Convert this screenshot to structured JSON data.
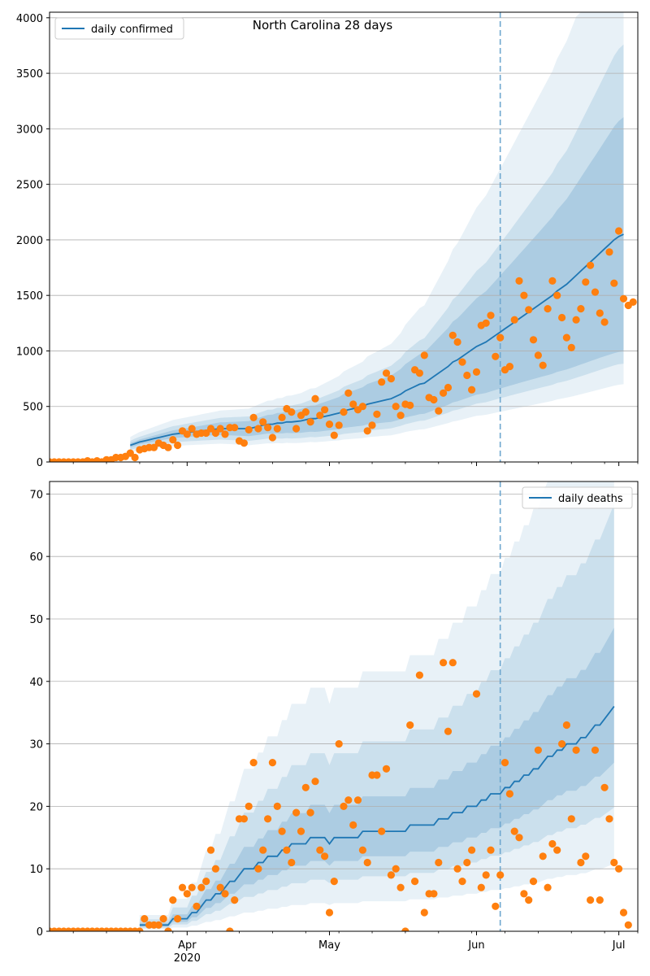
{
  "figure": {
    "title": "North Carolina 28 days"
  },
  "chart_data": [
    {
      "type": "line",
      "name": "confirmed",
      "title": "North Carolina 28 days",
      "xlabel": "",
      "ylabel": "",
      "x_start": "2020-03-03",
      "ylim": [
        0,
        4050
      ],
      "yticks": [
        0,
        500,
        1000,
        1500,
        2000,
        2500,
        3000,
        3500,
        4000
      ],
      "xticks": [
        {
          "date": "2020-04-01",
          "label": "Apr",
          "sublabel": "2020"
        },
        {
          "date": "2020-05-01",
          "label": "May",
          "sublabel": ""
        },
        {
          "date": "2020-06-01",
          "label": "Jun",
          "sublabel": ""
        },
        {
          "date": "2020-07-01",
          "label": "Jul",
          "sublabel": ""
        }
      ],
      "vline_date": "2020-06-06",
      "grid": "horizontal",
      "legend": {
        "label": "daily confirmed",
        "position": "top-left"
      },
      "colors": {
        "line": "#1f77b4",
        "points": "#ff7f0e",
        "band": "#1f77b4"
      },
      "observed": [
        0,
        0,
        0,
        0,
        0,
        0,
        0,
        0,
        10,
        0,
        10,
        0,
        20,
        20,
        40,
        40,
        50,
        80,
        40,
        110,
        120,
        130,
        130,
        170,
        150,
        130,
        200,
        150,
        280,
        250,
        300,
        250,
        260,
        260,
        300,
        260,
        300,
        250,
        310,
        310,
        190,
        170,
        290,
        400,
        300,
        360,
        310,
        220,
        300,
        400,
        480,
        450,
        300,
        420,
        450,
        360,
        570,
        420,
        470,
        340,
        240,
        330,
        450,
        620,
        520,
        470,
        500,
        280,
        330,
        430,
        720,
        800,
        750,
        500,
        420,
        520,
        510,
        830,
        800,
        960,
        580,
        560,
        460,
        620,
        670,
        1140,
        1080,
        900,
        780,
        650,
        810,
        1230,
        1250,
        1320,
        950,
        1120,
        830,
        860,
        1280,
        1630,
        1500,
        1370,
        1100,
        960,
        870,
        1380,
        1630,
        1500,
        1300,
        1120,
        1030,
        1280,
        1380,
        1620,
        1770,
        1530,
        1340,
        1260,
        1890,
        1610,
        2080,
        1470,
        1410,
        1440
      ],
      "model_x_start": "2020-03-20",
      "model": [
        150,
        165,
        180,
        190,
        200,
        210,
        220,
        230,
        240,
        250,
        255,
        260,
        265,
        270,
        275,
        280,
        285,
        290,
        295,
        300,
        300,
        300,
        300,
        300,
        300,
        300,
        310,
        320,
        330,
        340,
        340,
        350,
        350,
        360,
        360,
        365,
        370,
        380,
        390,
        390,
        400,
        410,
        420,
        430,
        440,
        460,
        470,
        480,
        490,
        500,
        520,
        530,
        540,
        550,
        560,
        570,
        590,
        610,
        640,
        660,
        680,
        700,
        710,
        740,
        770,
        800,
        830,
        860,
        900,
        920,
        950,
        980,
        1010,
        1040,
        1060,
        1080,
        1110,
        1140,
        1170,
        1200,
        1230,
        1260,
        1290,
        1320,
        1350,
        1380,
        1410,
        1440,
        1470,
        1500,
        1540,
        1570,
        1600,
        1640,
        1680,
        1720,
        1760,
        1800,
        1840,
        1880,
        1920,
        1960,
        2000,
        2030,
        2050
      ],
      "bands": {
        "inner": {
          "lo": [
            130,
            145,
            158,
            166,
            175,
            183,
            191,
            199,
            207,
            215,
            219,
            222,
            225,
            228,
            231,
            233,
            236,
            239,
            241,
            243,
            242,
            240,
            238,
            236,
            234,
            232,
            238,
            244,
            250,
            256,
            254,
            259,
            257,
            262,
            260,
            261,
            263,
            268,
            273,
            271,
            275,
            280,
            285,
            290,
            295,
            307,
            312,
            317,
            322,
            327,
            338,
            343,
            348,
            352,
            357,
            361,
            372,
            384,
            400,
            410,
            420,
            430,
            434,
            450,
            466,
            482,
            498,
            514,
            536,
            546,
            561,
            576,
            591,
            606,
            614,
            622,
            635,
            648,
            661,
            674,
            687,
            699,
            711,
            723,
            735,
            747,
            759,
            771,
            782,
            794,
            811,
            822,
            833,
            848,
            863,
            878,
            893,
            908,
            923,
            938,
            952,
            966,
            980,
            990,
            995
          ],
          "hi": [
            170,
            185,
            202,
            214,
            225,
            237,
            249,
            261,
            273,
            285,
            291,
            298,
            305,
            312,
            319,
            327,
            334,
            341,
            349,
            357,
            358,
            360,
            362,
            364,
            366,
            368,
            382,
            396,
            410,
            424,
            426,
            441,
            443,
            458,
            460,
            469,
            477,
            492,
            507,
            509,
            525,
            540,
            555,
            570,
            585,
            613,
            628,
            643,
            658,
            673,
            702,
            717,
            732,
            748,
            763,
            779,
            808,
            836,
            880,
            910,
            940,
            970,
            986,
            1030,
            1074,
            1118,
            1162,
            1206,
            1264,
            1294,
            1339,
            1384,
            1429,
            1474,
            1506,
            1538,
            1585,
            1632,
            1679,
            1726,
            1773,
            1821,
            1869,
            1917,
            1965,
            2013,
            2061,
            2109,
            2158,
            2206,
            2269,
            2318,
            2367,
            2432,
            2497,
            2562,
            2627,
            2692,
            2757,
            2822,
            2888,
            2954,
            3020,
            3070,
            3105
          ]
        },
        "mid": {
          "lo": [
            110,
            121,
            132,
            139,
            145,
            152,
            158,
            165,
            171,
            178,
            181,
            183,
            186,
            188,
            190,
            193,
            195,
            197,
            200,
            202,
            200,
            198,
            196,
            194,
            192,
            190,
            195,
            200,
            205,
            210,
            208,
            212,
            210,
            214,
            212,
            213,
            215,
            220,
            225,
            223,
            227,
            231,
            235,
            239,
            243,
            253,
            257,
            262,
            266,
            270,
            280,
            285,
            290,
            294,
            299,
            303,
            314,
            325,
            340,
            350,
            360,
            370,
            373,
            387,
            401,
            415,
            429,
            443,
            462,
            470,
            484,
            498,
            511,
            525,
            532,
            538,
            550,
            562,
            574,
            585,
            597,
            608,
            619,
            630,
            641,
            652,
            663,
            674,
            684,
            695,
            711,
            721,
            731,
            744,
            758,
            772,
            786,
            800,
            814,
            828,
            842,
            856,
            870,
            880,
            885
          ],
          "hi": [
            190,
            210,
            227,
            241,
            255,
            268,
            281,
            295,
            309,
            322,
            329,
            337,
            345,
            352,
            360,
            367,
            375,
            383,
            390,
            398,
            400,
            402,
            404,
            406,
            408,
            410,
            425,
            440,
            455,
            470,
            472,
            488,
            490,
            506,
            508,
            517,
            526,
            542,
            558,
            560,
            577,
            594,
            611,
            628,
            645,
            677,
            694,
            711,
            728,
            745,
            780,
            797,
            814,
            832,
            849,
            867,
            902,
            937,
            990,
            1025,
            1060,
            1095,
            1114,
            1169,
            1224,
            1279,
            1334,
            1389,
            1463,
            1500,
            1555,
            1610,
            1665,
            1720,
            1758,
            1796,
            1853,
            1910,
            1967,
            2024,
            2081,
            2139,
            2197,
            2255,
            2313,
            2371,
            2429,
            2487,
            2546,
            2604,
            2685,
            2744,
            2803,
            2888,
            2973,
            3058,
            3143,
            3228,
            3313,
            3398,
            3484,
            3570,
            3656,
            3720,
            3760
          ]
        },
        "outer": {
          "lo": [
            90,
            99,
            108,
            113,
            118,
            123,
            128,
            133,
            138,
            144,
            146,
            149,
            151,
            153,
            155,
            157,
            159,
            161,
            163,
            165,
            163,
            161,
            158,
            156,
            153,
            150,
            155,
            160,
            164,
            168,
            166,
            170,
            168,
            172,
            170,
            170,
            172,
            176,
            180,
            178,
            181,
            184,
            188,
            191,
            194,
            202,
            205,
            209,
            212,
            215,
            223,
            227,
            230,
            234,
            237,
            240,
            249,
            258,
            270,
            278,
            285,
            292,
            295,
            306,
            317,
            328,
            339,
            350,
            365,
            372,
            383,
            394,
            405,
            415,
            420,
            425,
            434,
            443,
            452,
            461,
            470,
            479,
            488,
            497,
            506,
            515,
            524,
            533,
            541,
            550,
            563,
            571,
            579,
            589,
            599,
            610,
            621,
            632,
            643,
            654,
            665,
            676,
            687,
            695,
            700
          ],
          "hi": [
            225,
            248,
            270,
            285,
            300,
            316,
            331,
            347,
            362,
            378,
            386,
            395,
            403,
            412,
            420,
            429,
            437,
            446,
            454,
            463,
            466,
            469,
            472,
            475,
            478,
            480,
            498,
            516,
            534,
            552,
            555,
            574,
            577,
            596,
            599,
            610,
            621,
            641,
            661,
            664,
            686,
            708,
            730,
            752,
            774,
            815,
            837,
            859,
            881,
            903,
            950,
            972,
            994,
            1018,
            1041,
            1064,
            1112,
            1160,
            1235,
            1285,
            1335,
            1385,
            1410,
            1490,
            1570,
            1650,
            1730,
            1810,
            1915,
            1970,
            2050,
            2130,
            2210,
            2290,
            2345,
            2400,
            2480,
            2560,
            2640,
            2720,
            2800,
            2880,
            2960,
            3040,
            3120,
            3200,
            3280,
            3360,
            3440,
            3520,
            3630,
            3710,
            3790,
            3900,
            4010,
            4100,
            4200,
            4300,
            4400,
            4500,
            4600,
            4700,
            4800,
            4870,
            4920
          ]
        }
      }
    },
    {
      "type": "line",
      "name": "deaths",
      "title": "",
      "xlabel": "",
      "ylabel": "",
      "x_start": "2020-03-03",
      "ylim": [
        0,
        72
      ],
      "yticks": [
        0,
        10,
        20,
        30,
        40,
        50,
        60,
        70
      ],
      "xticks": [
        {
          "date": "2020-04-01",
          "label": "Apr",
          "sublabel": "2020"
        },
        {
          "date": "2020-05-01",
          "label": "May",
          "sublabel": ""
        },
        {
          "date": "2020-06-01",
          "label": "Jun",
          "sublabel": ""
        },
        {
          "date": "2020-07-01",
          "label": "Jul",
          "sublabel": ""
        }
      ],
      "vline_date": "2020-06-06",
      "grid": "horizontal",
      "legend": {
        "label": "daily deaths",
        "position": "top-right"
      },
      "colors": {
        "line": "#1f77b4",
        "points": "#ff7f0e",
        "band": "#1f77b4"
      },
      "observed": [
        0,
        0,
        0,
        0,
        0,
        0,
        0,
        0,
        0,
        0,
        0,
        0,
        0,
        0,
        0,
        0,
        0,
        0,
        0,
        0,
        2,
        1,
        1,
        1,
        2,
        0,
        5,
        2,
        7,
        6,
        7,
        4,
        7,
        8,
        13,
        10,
        7,
        6,
        0,
        5,
        18,
        18,
        20,
        27,
        10,
        13,
        18,
        27,
        20,
        16,
        13,
        11,
        19,
        16,
        23,
        19,
        24,
        13,
        12,
        3,
        8,
        30,
        20,
        21,
        17,
        21,
        13,
        11,
        25,
        25,
        16,
        26,
        9,
        10,
        7,
        0,
        33,
        8,
        41,
        3,
        6,
        6,
        11,
        43,
        32,
        43,
        10,
        8,
        11,
        13,
        38,
        7,
        9,
        13,
        4,
        9,
        27,
        22,
        16,
        15,
        6,
        5,
        8,
        29,
        12,
        7,
        14,
        13,
        30,
        33,
        18,
        29,
        11,
        12,
        5,
        29,
        5,
        23,
        18,
        11,
        10,
        3,
        1
      ],
      "model_x_start": "2020-03-22",
      "model": [
        1,
        1,
        1,
        1,
        1,
        1,
        1,
        2,
        2,
        2,
        2,
        3,
        3,
        4,
        5,
        5,
        6,
        6,
        7,
        8,
        8,
        9,
        10,
        10,
        10,
        11,
        11,
        12,
        12,
        12,
        13,
        13,
        14,
        14,
        14,
        14,
        15,
        15,
        15,
        15,
        14,
        15,
        15,
        15,
        15,
        15,
        15,
        16,
        16,
        16,
        16,
        16,
        16,
        16,
        16,
        16,
        16,
        17,
        17,
        17,
        17,
        17,
        17,
        18,
        18,
        18,
        19,
        19,
        19,
        20,
        20,
        20,
        21,
        21,
        22,
        22,
        22,
        23,
        23,
        24,
        24,
        25,
        25,
        26,
        26,
        27,
        28,
        28,
        29,
        29,
        30,
        30,
        30,
        31,
        31,
        32,
        33,
        33,
        34,
        35,
        36
      ]
    }
  ]
}
